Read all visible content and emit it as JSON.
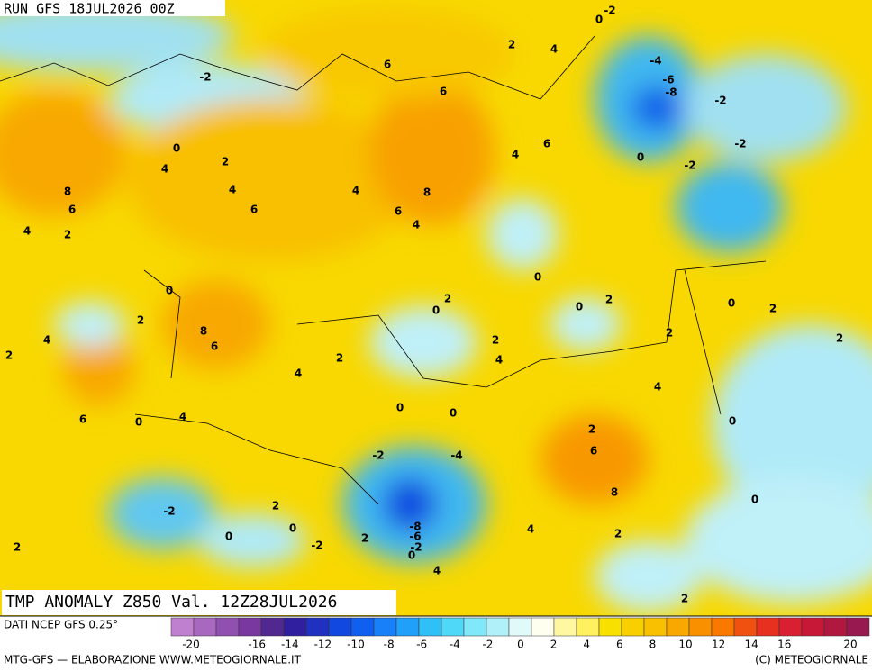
{
  "header": {
    "run": "RUN GFS 18JUL2026 00Z"
  },
  "map": {
    "title": "TMP ANOMALY Z850 Val. 12Z28JUL2026",
    "labels": [
      "0",
      "-2",
      "2",
      "4",
      "6",
      "-2",
      "-4",
      "-6",
      "-8",
      "-2",
      "6",
      "-2",
      "0",
      "2",
      "4",
      "4",
      "6",
      "0",
      "-2",
      "4",
      "4",
      "8",
      "8",
      "6",
      "6",
      "6",
      "4",
      "4",
      "2",
      "0",
      "0",
      "2",
      "0",
      "0",
      "2",
      "0",
      "2",
      "2",
      "8",
      "6",
      "4",
      "2",
      "2",
      "2",
      "2",
      "2",
      "4",
      "4",
      "4",
      "0",
      "0",
      "6",
      "0",
      "4",
      "0",
      "2",
      "6",
      "-2",
      "-4",
      "8",
      "0",
      "2",
      "-2",
      "-8",
      "-6",
      "0",
      "4",
      "0",
      "2",
      "-2",
      "-2",
      "2",
      "2",
      "0",
      "4",
      "2"
    ]
  },
  "legend": {
    "source": "DATI NCEP GFS 0.25°",
    "colors": [
      "#c080d0",
      "#a868c0",
      "#9050b0",
      "#7838a0",
      "#502890",
      "#3020a0",
      "#2030c0",
      "#1048e0",
      "#1060f0",
      "#1880f8",
      "#20a0f8",
      "#30c0f8",
      "#50d8f8",
      "#80e8f8",
      "#b0f0f8",
      "#e0fafa",
      "#fffff0",
      "#fff8a0",
      "#fff060",
      "#f8e000",
      "#f8d000",
      "#f8c000",
      "#f8a800",
      "#f89000",
      "#f87800",
      "#f05010",
      "#e83020",
      "#d82030",
      "#c81838",
      "#b01840",
      "#981850"
    ],
    "ticks": [
      -20,
      -16,
      -14,
      -12,
      -10,
      -8,
      -6,
      -4,
      -2,
      0,
      2,
      4,
      6,
      8,
      10,
      12,
      14,
      16,
      20
    ]
  },
  "footer": {
    "left": "MTG-GFS — ELABORAZIONE WWW.METEOGIORNALE.IT",
    "right": "(C) METEOGIORNALE"
  }
}
